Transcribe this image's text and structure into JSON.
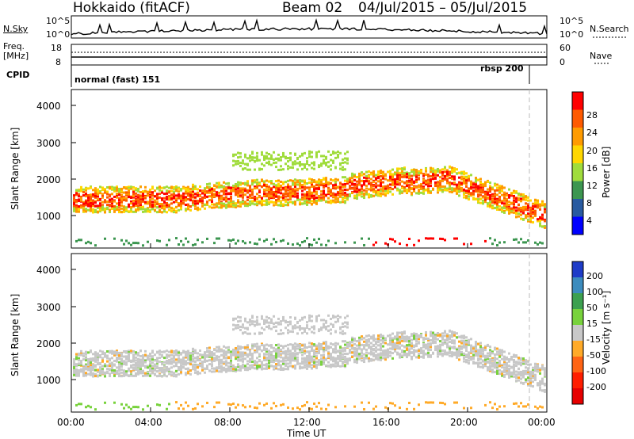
{
  "header": {
    "station": "Hokkaido (fitACF)",
    "beam": "Beam 02",
    "date_range": "04/Jul/2015 – 05/Jul/2015"
  },
  "top_panels": {
    "nsky_label": "N.Sky",
    "nsearch_label": "N.Search",
    "noise_ticks_left": [
      "10^5",
      "10^0"
    ],
    "noise_ticks_right": [
      "10^5",
      "10^0"
    ],
    "freq_label_1": "Freq.",
    "freq_label_2": "[MHz]",
    "freq_ticks": [
      "18",
      "8"
    ],
    "nave_label": "Nave",
    "nave_ticks": [
      "60",
      "0"
    ],
    "cpid_label": "CPID",
    "cpid_mode_1": "normal (fast) 151",
    "cpid_mode_2": "rbsp 200"
  },
  "colorbars": {
    "power": {
      "label": "Power [dB]",
      "ticks": [
        "28",
        "24",
        "20",
        "16",
        "12",
        "8",
        "4"
      ],
      "colors": [
        "#ff0000",
        "#ff5a00",
        "#ff9b00",
        "#ffd700",
        "#a0dc3c",
        "#3c9650",
        "#285aa0",
        "#0000ff"
      ]
    },
    "velocity": {
      "label": "Velocity [m s⁻¹]",
      "ticks": [
        "200",
        "100",
        "50",
        "15",
        "-15",
        "-50",
        "-100",
        "-200"
      ],
      "colors": [
        "#1e3cc8",
        "#3c8cbe",
        "#3ca050",
        "#78d23c",
        "#c8c8c8",
        "#ffaa28",
        "#ff6414",
        "#ff1e00",
        "#e60000"
      ]
    }
  },
  "chart_data": [
    {
      "type": "heatmap",
      "title": "Power",
      "ylabel": "Slant Range [km]",
      "yticks": [
        "4000",
        "3000",
        "2000",
        "1000"
      ],
      "ylim": [
        200,
        4500
      ],
      "xlim": [
        "00:00",
        "24:00"
      ],
      "description_bands": [
        {
          "from_ut": "00:00",
          "to_ut": "23:00",
          "range_km": [
            1300,
            1700
          ],
          "power_db": 16
        },
        {
          "from_ut": "06:00",
          "to_ut": "21:00",
          "range_km": [
            1400,
            2200
          ],
          "power_db": 24
        },
        {
          "from_ut": "08:00",
          "to_ut": "14:00",
          "range_km": [
            2500,
            3000
          ],
          "power_db": 16
        },
        {
          "from_ut": "15:00",
          "to_ut": "20:00",
          "range_km": [
            200,
            400
          ],
          "power_db": 28
        }
      ]
    },
    {
      "type": "heatmap",
      "title": "Velocity",
      "ylabel": "Slant Range [km]",
      "yticks": [
        "4000",
        "3000",
        "2000",
        "1000"
      ],
      "ylim": [
        200,
        4500
      ],
      "xlim": [
        "00:00",
        "24:00"
      ],
      "xticks": [
        "00:00",
        "04:00",
        "08:00",
        "12:00",
        "16:00",
        "20:00",
        "00:00"
      ],
      "xlabel": "Time UT"
    }
  ]
}
